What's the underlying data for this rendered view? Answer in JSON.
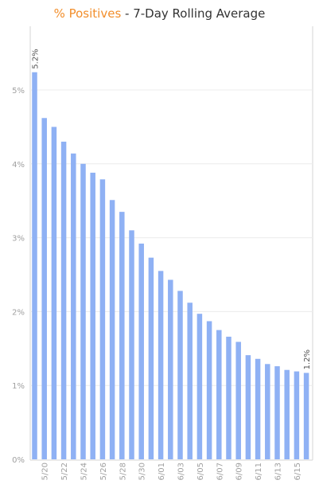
{
  "title": {
    "accent_text": "% Positives",
    "rest_text": " - 7-Day Rolling Average"
  },
  "colors": {
    "bar": "#8fb1f4",
    "accent": "#f28e2b",
    "axis_text": "#a0a0a0",
    "gridline": "#ececec",
    "frame": "#d6d6d6",
    "data_label": "#555555"
  },
  "chart_data": {
    "type": "bar",
    "categories": [
      "5/19",
      "5/20",
      "5/21",
      "5/22",
      "5/23",
      "5/24",
      "5/25",
      "5/26",
      "5/27",
      "5/28",
      "5/29",
      "5/30",
      "5/31",
      "6/01",
      "6/02",
      "6/03",
      "6/04",
      "6/05",
      "6/06",
      "6/07",
      "6/08",
      "6/09",
      "6/10",
      "6/11",
      "6/12",
      "6/13",
      "6/14",
      "6/15",
      "6/16"
    ],
    "x_tick_labels": [
      "5/20",
      "5/22",
      "5/24",
      "5/26",
      "5/28",
      "5/30",
      "6/01",
      "6/03",
      "6/05",
      "6/07",
      "6/09",
      "6/11",
      "6/13",
      "6/15"
    ],
    "values": [
      5.24,
      4.62,
      4.5,
      4.3,
      4.14,
      4.0,
      3.88,
      3.79,
      3.51,
      3.35,
      3.1,
      2.92,
      2.73,
      2.55,
      2.43,
      2.28,
      2.12,
      1.97,
      1.87,
      1.75,
      1.66,
      1.59,
      1.41,
      1.36,
      1.29,
      1.26,
      1.21,
      1.19,
      1.17
    ],
    "y_ticks": [
      0,
      1,
      2,
      3,
      4,
      5
    ],
    "y_tick_labels": [
      "0%",
      "1%",
      "2%",
      "3%",
      "4%",
      "5%"
    ],
    "ylim": [
      0,
      5.6
    ],
    "data_labels": [
      {
        "index": 0,
        "text": "5.2%"
      },
      {
        "index": 28,
        "text": "1.2%"
      }
    ],
    "grid": true,
    "legend": "none",
    "title": "% Positives - 7-Day Rolling Average",
    "xlabel": "",
    "ylabel": ""
  }
}
